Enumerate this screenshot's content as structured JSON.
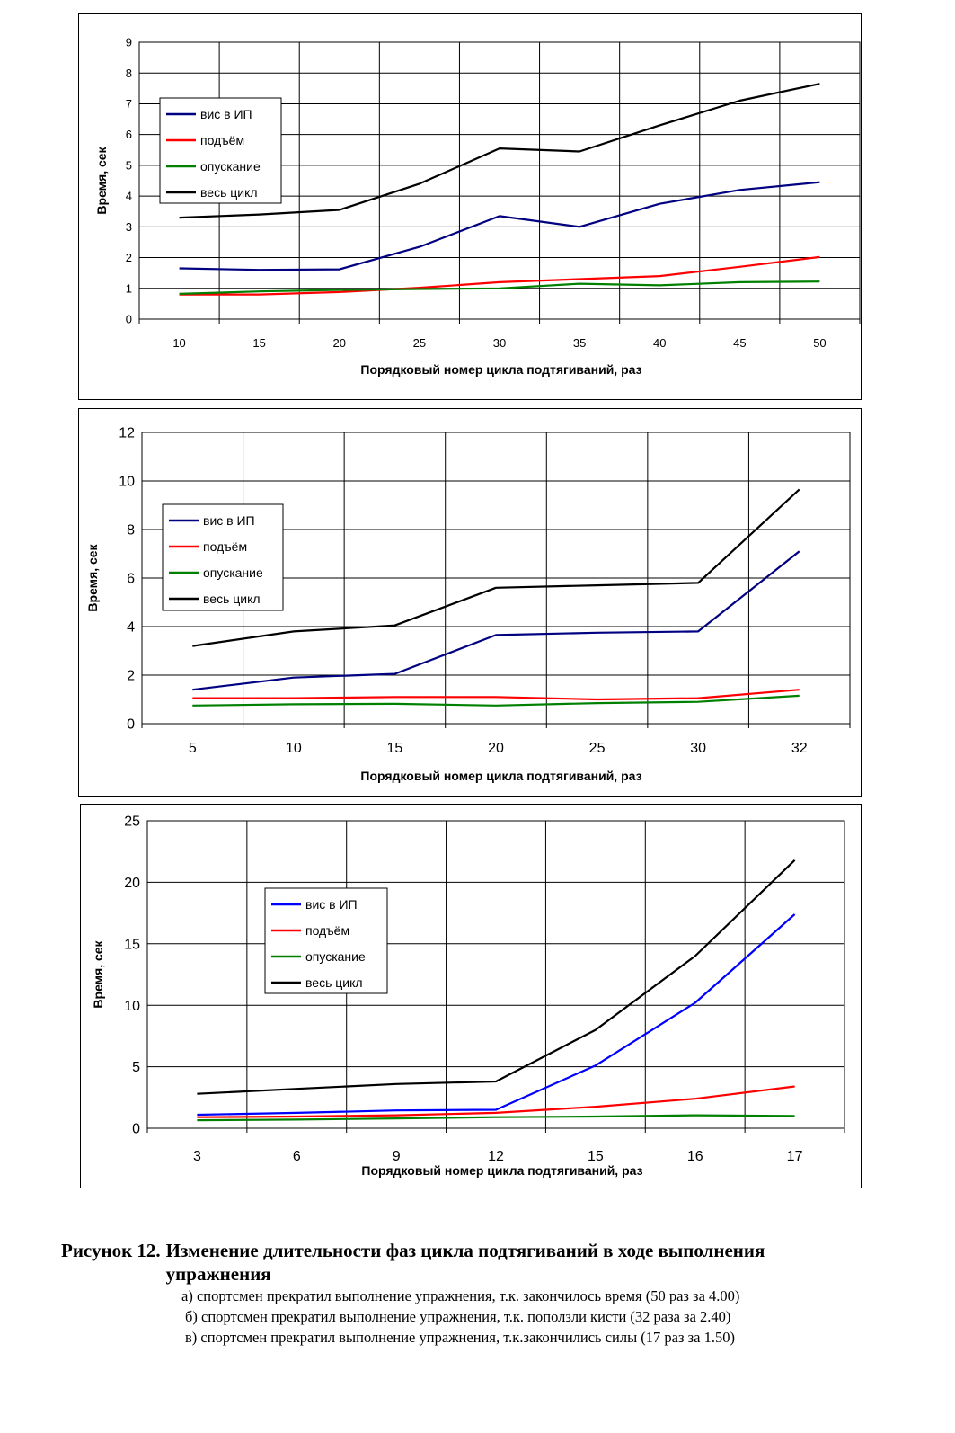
{
  "chart_data": [
    {
      "type": "line",
      "x": [
        "10",
        "15",
        "20",
        "25",
        "30",
        "35",
        "40",
        "45",
        "50"
      ],
      "ylabel": "Время, сек",
      "xlabel": "Порядковый номер цикла подтягиваний, раз",
      "ylim": [
        0,
        9
      ],
      "ytick_step": 1,
      "grid": true,
      "legend_placement": "top-left",
      "series": [
        {
          "name": "вис в ИП",
          "color": "#000080",
          "values": [
            1.65,
            1.6,
            1.62,
            2.35,
            3.35,
            3.0,
            3.75,
            4.2,
            4.45
          ]
        },
        {
          "name": "подъём",
          "color": "#ff0000",
          "values": [
            0.8,
            0.8,
            0.88,
            1.02,
            1.2,
            1.3,
            1.4,
            1.7,
            2.02
          ]
        },
        {
          "name": "опускание",
          "color": "#008000",
          "values": [
            0.82,
            0.9,
            0.95,
            0.98,
            1.0,
            1.15,
            1.1,
            1.2,
            1.22
          ]
        },
        {
          "name": "весь цикл",
          "color": "#000000",
          "values": [
            3.3,
            3.4,
            3.55,
            4.4,
            5.55,
            5.45,
            6.3,
            7.1,
            7.65
          ]
        }
      ]
    },
    {
      "type": "line",
      "x": [
        "5",
        "10",
        "15",
        "20",
        "25",
        "30",
        "32"
      ],
      "ylabel": "Время, сек",
      "xlabel": "Порядковый номер цикла подтягиваний, раз",
      "ylim": [
        0,
        12
      ],
      "ytick_step": 2,
      "grid": true,
      "legend_placement": "top-left",
      "series": [
        {
          "name": "вис в ИП",
          "color": "#000080",
          "values": [
            1.4,
            1.9,
            2.05,
            3.65,
            3.75,
            3.8,
            7.1
          ]
        },
        {
          "name": "подъём",
          "color": "#ff0000",
          "values": [
            1.05,
            1.05,
            1.1,
            1.1,
            1.0,
            1.05,
            1.4
          ]
        },
        {
          "name": "опускание",
          "color": "#008000",
          "values": [
            0.75,
            0.8,
            0.82,
            0.75,
            0.85,
            0.9,
            1.15
          ]
        },
        {
          "name": "весь цикл",
          "color": "#000000",
          "values": [
            3.2,
            3.8,
            4.05,
            5.6,
            5.7,
            5.8,
            9.65
          ]
        }
      ]
    },
    {
      "type": "line",
      "x": [
        "3",
        "6",
        "9",
        "12",
        "15",
        "16",
        "17"
      ],
      "ylabel": "Время, сек",
      "xlabel": "Порядковый номер цикла подтягиваний, раз",
      "ylim": [
        0,
        25
      ],
      "ytick_step": 5,
      "grid": true,
      "legend_placement": "top-left",
      "series": [
        {
          "name": "вис в ИП",
          "color": "#0000ff",
          "values": [
            1.1,
            1.25,
            1.45,
            1.5,
            5.1,
            10.2,
            17.4
          ]
        },
        {
          "name": "подъём",
          "color": "#ff0000",
          "values": [
            0.9,
            0.95,
            1.05,
            1.25,
            1.75,
            2.4,
            3.4
          ]
        },
        {
          "name": "опускание",
          "color": "#008000",
          "values": [
            0.65,
            0.7,
            0.8,
            0.9,
            0.95,
            1.05,
            1.0
          ]
        },
        {
          "name": "весь цикл",
          "color": "#000000",
          "values": [
            2.8,
            3.2,
            3.6,
            3.8,
            8.0,
            14.0,
            21.8
          ]
        }
      ]
    }
  ],
  "caption": {
    "prefix": "Рисунок 12.",
    "title": "Изменение длительности фаз цикла подтягиваний в ходе выполнения упражнения",
    "notes": [
      "а) спортсмен прекратил выполнение упражнения, т.к. закончилось время (50 раз за 4.00)",
      "б) спортсмен прекратил выполнение упражнения, т.к. поползли кисти (32 раза за 2.40)",
      "в) спортсмен прекратил выполнение упражнения, т.к.закончились силы (17 раз за 1.50)"
    ]
  }
}
